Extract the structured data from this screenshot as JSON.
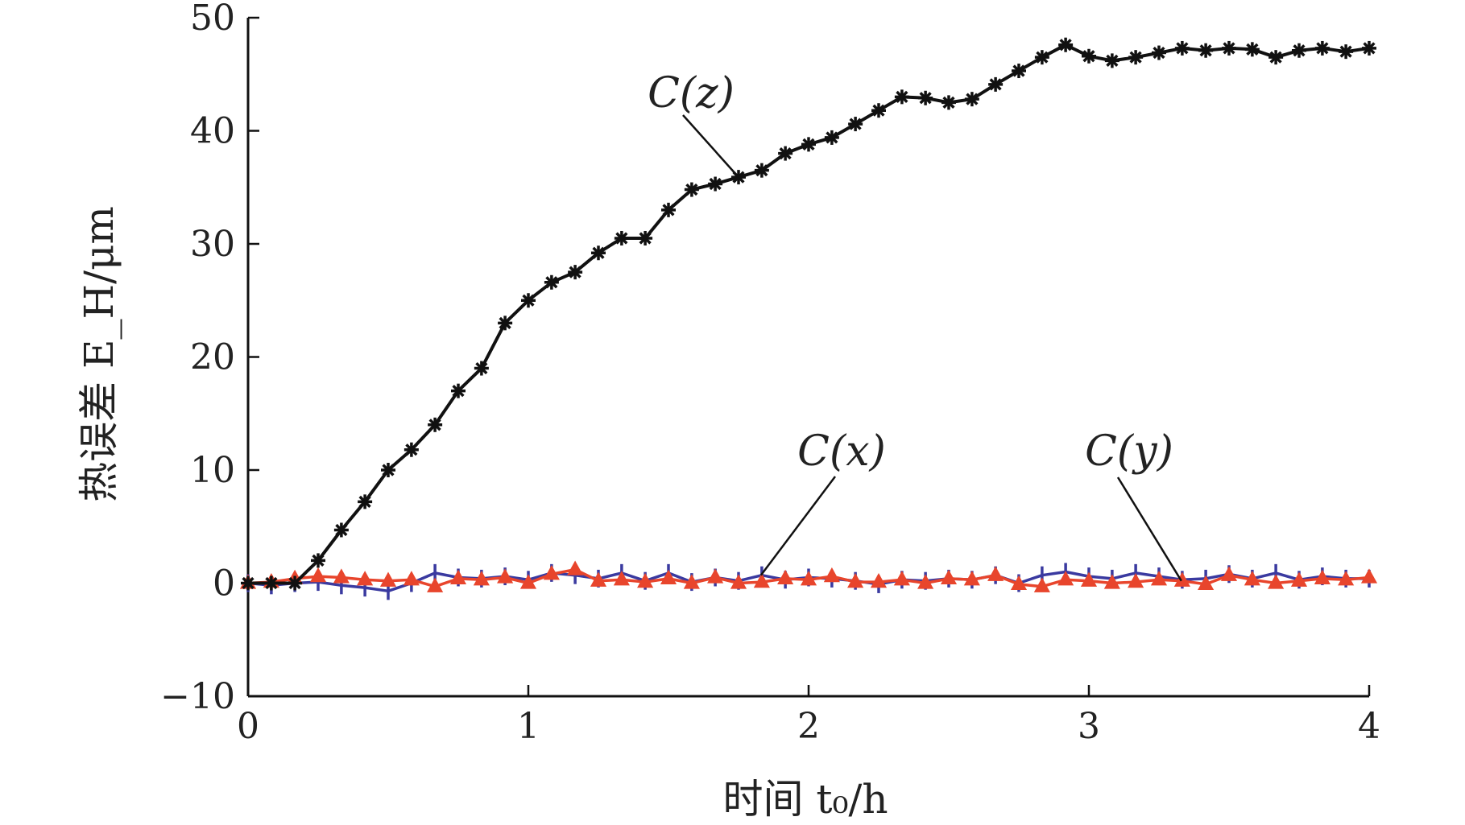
{
  "chart_data": {
    "type": "line",
    "xlabel": "时间 t₀/h",
    "ylabel": "热误差 E_H/μm",
    "xlim": [
      0,
      4
    ],
    "ylim": [
      -10,
      50
    ],
    "xticks": [
      0,
      1,
      2,
      3,
      4
    ],
    "yticks": [
      -10,
      0,
      10,
      20,
      30,
      40,
      50
    ],
    "xtick_labels": [
      "0",
      "1",
      "2",
      "3",
      "4"
    ],
    "ytick_labels": [
      "−10",
      "0",
      "10",
      "20",
      "30",
      "40",
      "50"
    ],
    "grid": false,
    "legend": "inline labels",
    "colors": {
      "cz": "#111111",
      "cx": "#3a3aa0",
      "cy": "#e8452c"
    },
    "series": [
      {
        "name": "C(z)",
        "key": "cz",
        "marker": "asterisk",
        "x": [
          0,
          0.083,
          0.167,
          0.25,
          0.333,
          0.417,
          0.5,
          0.583,
          0.667,
          0.75,
          0.833,
          0.917,
          1.0,
          1.083,
          1.167,
          1.25,
          1.333,
          1.417,
          1.5,
          1.583,
          1.667,
          1.75,
          1.833,
          1.917,
          2.0,
          2.083,
          2.167,
          2.25,
          2.333,
          2.417,
          2.5,
          2.583,
          2.667,
          2.75,
          2.833,
          2.917,
          3.0,
          3.083,
          3.167,
          3.25,
          3.333,
          3.417,
          3.5,
          3.583,
          3.667,
          3.75,
          3.833,
          3.917,
          4.0
        ],
        "y": [
          0,
          0,
          0,
          2,
          4.7,
          7.2,
          10,
          11.8,
          14,
          17,
          19,
          23,
          25,
          26.6,
          27.5,
          29.2,
          30.5,
          30.5,
          33,
          34.8,
          35.3,
          35.9,
          36.5,
          38,
          38.8,
          39.4,
          40.6,
          41.8,
          43,
          42.9,
          42.5,
          42.8,
          44.1,
          45.3,
          46.5,
          47.6,
          46.6,
          46.2,
          46.5,
          46.9,
          47.3,
          47.1,
          47.3,
          47.2,
          46.5,
          47.1,
          47.3,
          47.0,
          47.3
        ]
      },
      {
        "name": "C(x)",
        "key": "cx",
        "marker": "vline",
        "x": [
          0,
          0.083,
          0.167,
          0.25,
          0.333,
          0.417,
          0.5,
          0.583,
          0.667,
          0.75,
          0.833,
          0.917,
          1.0,
          1.083,
          1.167,
          1.25,
          1.333,
          1.417,
          1.5,
          1.583,
          1.667,
          1.75,
          1.833,
          1.917,
          2.0,
          2.083,
          2.167,
          2.25,
          2.333,
          2.417,
          2.5,
          2.583,
          2.667,
          2.75,
          2.833,
          2.917,
          3.0,
          3.083,
          3.167,
          3.25,
          3.333,
          3.417,
          3.5,
          3.583,
          3.667,
          3.75,
          3.833,
          3.917,
          4.0
        ],
        "y": [
          0,
          -0.2,
          0,
          0.1,
          -0.2,
          -0.4,
          -0.7,
          0,
          0.9,
          0.5,
          0.4,
          0.6,
          0.3,
          0.9,
          0.7,
          0.4,
          0.9,
          0.2,
          0.9,
          0.1,
          0.5,
          0.2,
          0.7,
          0.3,
          0.5,
          0.4,
          0.2,
          -0.1,
          0.3,
          0.2,
          0.4,
          0.3,
          0.7,
          0.0,
          0.7,
          1.0,
          0.6,
          0.4,
          0.9,
          0.6,
          0.3,
          0.4,
          0.8,
          0.4,
          0.9,
          0.3,
          0.6,
          0.4,
          0.4
        ]
      },
      {
        "name": "C(y)",
        "key": "cy",
        "marker": "triangle",
        "x": [
          0,
          0.083,
          0.167,
          0.25,
          0.333,
          0.417,
          0.5,
          0.583,
          0.667,
          0.75,
          0.833,
          0.917,
          1.0,
          1.083,
          1.167,
          1.25,
          1.333,
          1.417,
          1.5,
          1.583,
          1.667,
          1.75,
          1.833,
          1.917,
          2.0,
          2.083,
          2.167,
          2.25,
          2.333,
          2.417,
          2.5,
          2.583,
          2.667,
          2.75,
          2.833,
          2.917,
          3.0,
          3.083,
          3.167,
          3.25,
          3.333,
          3.417,
          3.5,
          3.583,
          3.667,
          3.75,
          3.833,
          3.917,
          4.0
        ],
        "y": [
          0,
          0.1,
          0.4,
          0.6,
          0.5,
          0.3,
          0.2,
          0.3,
          -0.3,
          0.4,
          0.3,
          0.5,
          0.0,
          0.8,
          1.2,
          0.2,
          0.3,
          0.1,
          0.4,
          0.0,
          0.5,
          0.0,
          0.1,
          0.4,
          0.3,
          0.6,
          0.1,
          0.1,
          0.3,
          0.0,
          0.4,
          0.3,
          0.7,
          -0.1,
          -0.3,
          0.3,
          0.2,
          0.0,
          0.1,
          0.3,
          0.2,
          -0.1,
          0.7,
          0.3,
          0.0,
          0.2,
          0.4,
          0.3,
          0.5
        ]
      }
    ],
    "annotations": [
      {
        "text": "C(z)",
        "series": "cz",
        "point_x": 1.75,
        "point_y": 35.9
      },
      {
        "text": "C(x)",
        "series": "cx",
        "point_x": 1.83,
        "point_y": 0.7
      },
      {
        "text": "C(y)",
        "series": "cy",
        "point_x": 3.33,
        "point_y": 0.2
      }
    ]
  }
}
